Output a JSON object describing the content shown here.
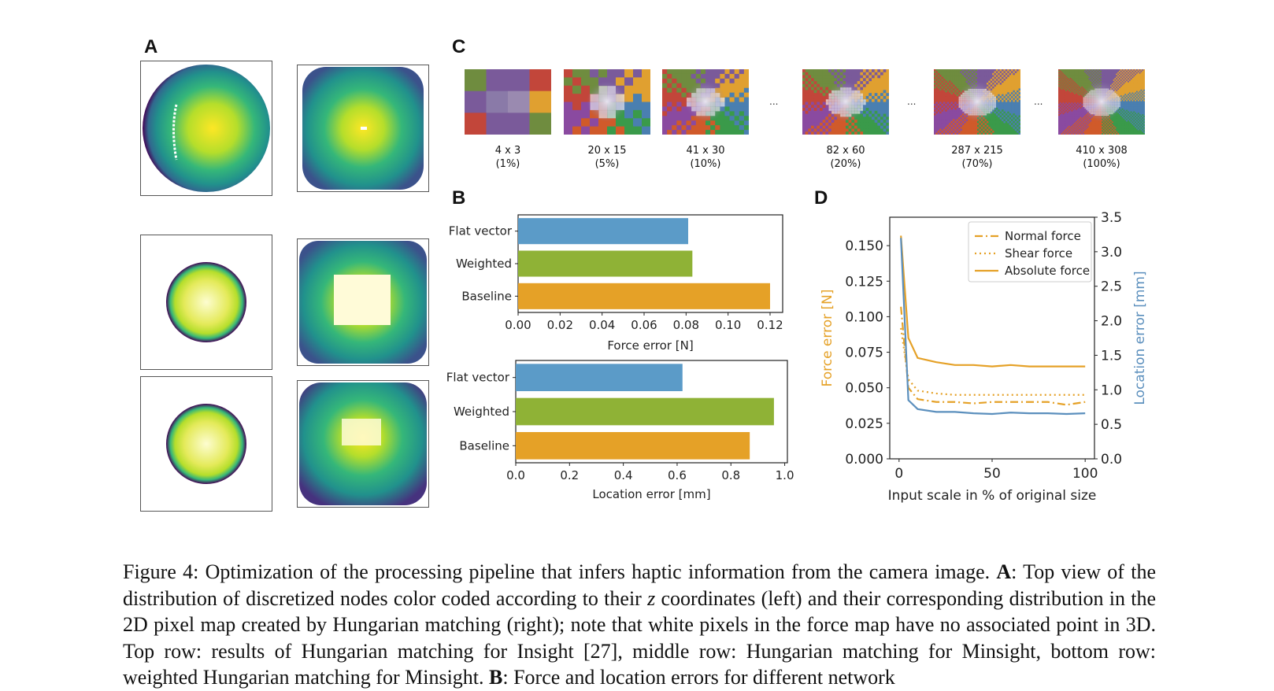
{
  "panels": {
    "a": "A",
    "b": "B",
    "c": "C",
    "d": "D"
  },
  "colors": {
    "blue": "#5b9bc8",
    "green": "#8fb236",
    "orange": "#e5a127",
    "force_axis": "#e5a127",
    "location_axis": "#5b8fbd"
  },
  "panel_c": {
    "items": [
      {
        "size": "4 x 3",
        "pct": "(1%)"
      },
      {
        "size": "20 x 15",
        "pct": "(5%)"
      },
      {
        "size": "41 x 30",
        "pct": "(10%)"
      },
      {
        "size": "82 x 60",
        "pct": "(20%)"
      },
      {
        "size": "287 x 215",
        "pct": "(70%)"
      },
      {
        "size": "410 x 308",
        "pct": "(100%)"
      }
    ],
    "ellipsis": "..."
  },
  "chart_data": [
    {
      "type": "bar",
      "orientation": "horizontal",
      "categories": [
        "Flat vector",
        "Weighted",
        "Baseline"
      ],
      "values": [
        0.081,
        0.083,
        0.12
      ],
      "colors": [
        "#5b9bc8",
        "#8fb236",
        "#e5a127"
      ],
      "xlabel": "Force error [N]",
      "xlim": [
        0,
        0.126
      ],
      "xticks": [
        "0.00",
        "0.02",
        "0.04",
        "0.06",
        "0.08",
        "0.10",
        "0.12"
      ]
    },
    {
      "type": "bar",
      "orientation": "horizontal",
      "categories": [
        "Flat vector",
        "Weighted",
        "Baseline"
      ],
      "values": [
        0.62,
        0.96,
        0.87
      ],
      "colors": [
        "#5b9bc8",
        "#8fb236",
        "#e5a127"
      ],
      "xlabel": "Location error [mm]",
      "xlim": [
        0,
        1.01
      ],
      "xticks": [
        "0.0",
        "0.2",
        "0.4",
        "0.6",
        "0.8",
        "1.0"
      ]
    },
    {
      "type": "line",
      "xlabel": "Input scale in % of original size",
      "ylabel": "Force error [N]",
      "ylabel_right": "Location error [mm]",
      "xlim": [
        -5,
        105
      ],
      "ylim": [
        0,
        0.17
      ],
      "ylim_right": [
        0,
        3.5
      ],
      "xticks": [
        "0",
        "50",
        "100"
      ],
      "yticks": [
        "0.000",
        "0.025",
        "0.050",
        "0.075",
        "0.100",
        "0.125",
        "0.150"
      ],
      "yticks_right": [
        "0.0",
        "0.5",
        "1.0",
        "1.5",
        "2.0",
        "2.5",
        "3.0",
        "3.5"
      ],
      "legend_position": "top-right",
      "x": [
        1,
        5,
        10,
        20,
        30,
        40,
        50,
        60,
        70,
        80,
        90,
        100
      ],
      "series": [
        {
          "name": "Normal force",
          "style": "dashdot",
          "axis": "left",
          "color": "#e5a127",
          "values": [
            0.107,
            0.05,
            0.042,
            0.04,
            0.04,
            0.039,
            0.04,
            0.04,
            0.04,
            0.04,
            0.038,
            0.04
          ]
        },
        {
          "name": "Shear force",
          "style": "dotted",
          "axis": "left",
          "color": "#e5a127",
          "values": [
            0.092,
            0.056,
            0.048,
            0.046,
            0.045,
            0.045,
            0.045,
            0.045,
            0.045,
            0.045,
            0.045,
            0.045
          ]
        },
        {
          "name": "Absolute force",
          "style": "solid",
          "axis": "left",
          "color": "#e5a127",
          "values": [
            0.157,
            0.085,
            0.071,
            0.068,
            0.066,
            0.066,
            0.065,
            0.066,
            0.065,
            0.065,
            0.065,
            0.065
          ]
        },
        {
          "axis": "right",
          "style": "solid",
          "color": "#5b8fbd",
          "values": [
            3.2,
            0.85,
            0.72,
            0.68,
            0.68,
            0.66,
            0.65,
            0.67,
            0.66,
            0.66,
            0.65,
            0.66
          ]
        }
      ]
    }
  ],
  "caption": {
    "p1": "Figure 4: Optimization of the processing pipeline that infers haptic information from the camera image. ",
    "a": "A",
    "p2": ": Top view of the distribution of discretized nodes color coded according to their ",
    "z": "z",
    "p3": " coordinates (left) and their corresponding distribution in the 2D pixel map created by Hungarian matching (right); note that white pixels in the force map have no associated point in 3D. Top row: results of Hungarian matching for Insight [27], middle row: Hungarian matching for Minsight, bottom row: weighted Hungarian matching for Minsight. ",
    "b": "B",
    "p4": ": Force and location errors for different network"
  }
}
